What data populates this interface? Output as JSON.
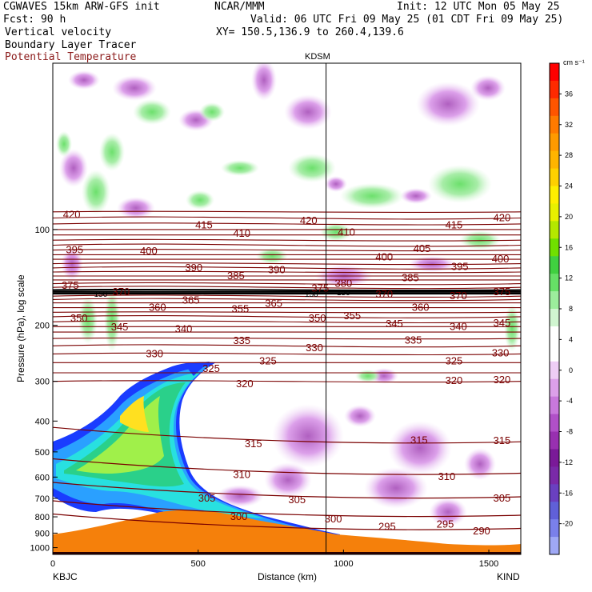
{
  "header": {
    "line1_left": "CGWAVES 15km ARW-GFS init",
    "line1_mid": "NCAR/MMM",
    "line1_right": "Init: 12 UTC Mon 05 May 25",
    "line2_left": "Fcst:   90 h",
    "line2_right": "Valid: 06 UTC Fri 09 May 25 (01 CDT Fri 09 May 25)",
    "line3_left": "Vertical velocity",
    "line3_right": "XY= 150.5,136.9 to 260.4,139.6",
    "line4_left": "Boundary Layer Tracer",
    "line5_left": "Potential Temperature",
    "station_top": "KDSM"
  },
  "colors": {
    "theta_line": "#7a0000",
    "potential_temperature_text": "#8b1a1a",
    "terrain": "#f5800b",
    "purple": "#b060c0",
    "green": "#7ee07e"
  },
  "chart_data": {
    "type": "cross-section",
    "xlabel": "Distance (km)",
    "ylabel": "Pressure (hPa), log scale",
    "x_ticks": [
      0,
      500,
      1000,
      1500
    ],
    "xlim": [
      0,
      1610
    ],
    "y_ticks": [
      100,
      200,
      300,
      400,
      500,
      600,
      700,
      800,
      900,
      1000
    ],
    "ylim_hPa": [
      1050,
      30
    ],
    "y_scale": "log",
    "x_left_label": "KBJC",
    "x_right_label": "KIND",
    "vertical_marker_km": 940,
    "colorbar": {
      "unit": "cm s⁻¹",
      "tick_values": [
        36,
        32,
        28,
        24,
        20,
        16,
        12,
        8,
        4,
        0,
        -4,
        -8,
        -12,
        -16,
        -20
      ],
      "colors": [
        "#ff0000",
        "#ff2a00",
        "#ff5500",
        "#ff7a00",
        "#ff9a00",
        "#ffb400",
        "#ffd000",
        "#ffee00",
        "#e8f000",
        "#b4e800",
        "#70e000",
        "#40d040",
        "#66e066",
        "#9ced9c",
        "#d0f5d0",
        "#ffffff",
        "#ffffff",
        "#eecdf5",
        "#dca0ea",
        "#c878dc",
        "#b050c8",
        "#9830b0",
        "#7a1a98",
        "#7a2aa8",
        "#6a40c0",
        "#6060d8",
        "#7a80ea",
        "#9fa8f5"
      ]
    },
    "theta_contour_labels": [
      {
        "value": "420",
        "x_km": 65,
        "p": 90
      },
      {
        "value": "415",
        "x_km": 520,
        "p": 97
      },
      {
        "value": "410",
        "x_km": 650,
        "p": 103
      },
      {
        "value": "420",
        "x_km": 880,
        "p": 94
      },
      {
        "value": "410",
        "x_km": 1010,
        "p": 102
      },
      {
        "value": "415",
        "x_km": 1380,
        "p": 97
      },
      {
        "value": "420",
        "x_km": 1545,
        "p": 92
      },
      {
        "value": "395",
        "x_km": 75,
        "p": 116
      },
      {
        "value": "400",
        "x_km": 330,
        "p": 117
      },
      {
        "value": "400",
        "x_km": 1140,
        "p": 122
      },
      {
        "value": "405",
        "x_km": 1270,
        "p": 115
      },
      {
        "value": "395",
        "x_km": 1400,
        "p": 131
      },
      {
        "value": "400",
        "x_km": 1540,
        "p": 124
      },
      {
        "value": "390",
        "x_km": 485,
        "p": 132
      },
      {
        "value": "385",
        "x_km": 630,
        "p": 140
      },
      {
        "value": "390",
        "x_km": 770,
        "p": 134
      },
      {
        "value": "380",
        "x_km": 1000,
        "p": 148
      },
      {
        "value": "385",
        "x_km": 1230,
        "p": 142
      },
      {
        "value": "375",
        "x_km": 60,
        "p": 150
      },
      {
        "value": "375",
        "x_km": 920,
        "p": 153
      },
      {
        "value": "375",
        "x_km": 1545,
        "p": 157
      },
      {
        "value": "150",
        "x_km": 165,
        "p": 159
      },
      {
        "value": "370",
        "x_km": 235,
        "p": 157
      },
      {
        "value": "150",
        "x_km": 890,
        "p": 159
      },
      {
        "value": "150",
        "x_km": 1000,
        "p": 157
      },
      {
        "value": "370",
        "x_km": 1140,
        "p": 160
      },
      {
        "value": "370",
        "x_km": 1395,
        "p": 162
      },
      {
        "value": "360",
        "x_km": 360,
        "p": 176
      },
      {
        "value": "365",
        "x_km": 475,
        "p": 167
      },
      {
        "value": "355",
        "x_km": 645,
        "p": 178
      },
      {
        "value": "365",
        "x_km": 760,
        "p": 171
      },
      {
        "value": "360",
        "x_km": 1265,
        "p": 176
      },
      {
        "value": "350",
        "x_km": 90,
        "p": 190
      },
      {
        "value": "345",
        "x_km": 230,
        "p": 203
      },
      {
        "value": "340",
        "x_km": 450,
        "p": 206
      },
      {
        "value": "350",
        "x_km": 910,
        "p": 190
      },
      {
        "value": "355",
        "x_km": 1030,
        "p": 187
      },
      {
        "value": "345",
        "x_km": 1175,
        "p": 198
      },
      {
        "value": "340",
        "x_km": 1395,
        "p": 202
      },
      {
        "value": "345",
        "x_km": 1545,
        "p": 197
      },
      {
        "value": "335",
        "x_km": 650,
        "p": 224
      },
      {
        "value": "330",
        "x_km": 350,
        "p": 246
      },
      {
        "value": "330",
        "x_km": 900,
        "p": 236
      },
      {
        "value": "335",
        "x_km": 1240,
        "p": 223
      },
      {
        "value": "330",
        "x_km": 1540,
        "p": 245
      },
      {
        "value": "325",
        "x_km": 545,
        "p": 274
      },
      {
        "value": "325",
        "x_km": 740,
        "p": 259
      },
      {
        "value": "325",
        "x_km": 1380,
        "p": 259
      },
      {
        "value": "320",
        "x_km": 660,
        "p": 306
      },
      {
        "value": "320",
        "x_km": 1380,
        "p": 299
      },
      {
        "value": "320",
        "x_km": 1545,
        "p": 297
      },
      {
        "value": "315",
        "x_km": 690,
        "p": 472
      },
      {
        "value": "315",
        "x_km": 1260,
        "p": 460
      },
      {
        "value": "315",
        "x_km": 1545,
        "p": 462
      },
      {
        "value": "310",
        "x_km": 650,
        "p": 590
      },
      {
        "value": "310",
        "x_km": 1355,
        "p": 598
      },
      {
        "value": "305",
        "x_km": 530,
        "p": 700
      },
      {
        "value": "305",
        "x_km": 840,
        "p": 708
      },
      {
        "value": "305",
        "x_km": 1545,
        "p": 700
      },
      {
        "value": "300",
        "x_km": 640,
        "p": 800
      },
      {
        "value": "300",
        "x_km": 965,
        "p": 815
      },
      {
        "value": "295",
        "x_km": 1150,
        "p": 860
      },
      {
        "value": "295",
        "x_km": 1350,
        "p": 845
      },
      {
        "value": "290",
        "x_km": 1475,
        "p": 888
      }
    ]
  }
}
